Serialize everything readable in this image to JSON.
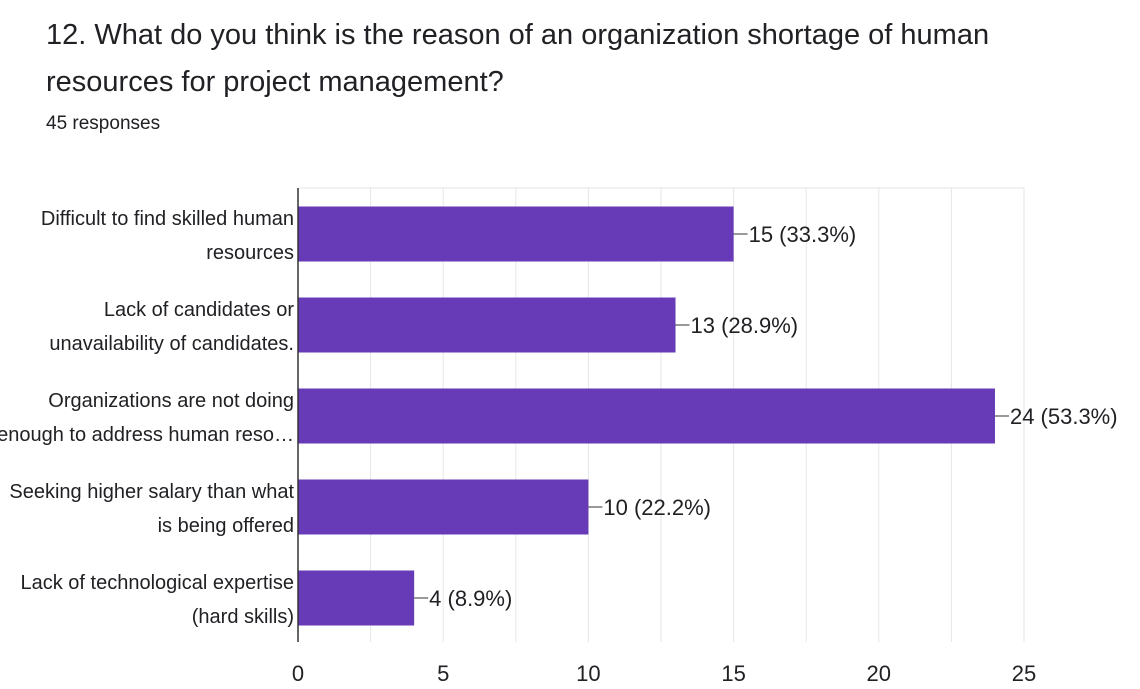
{
  "question": {
    "title": "12. What do you think is the reason of an organization shortage of human resources for project management?",
    "responses_label": "45 responses"
  },
  "colors": {
    "bar": "#673ab7",
    "grid": "#e6e6e6",
    "axis": "#333333",
    "text": "#202124"
  },
  "chart_data": {
    "type": "bar",
    "orientation": "horizontal",
    "title": "12. What do you think is the reason of an organization shortage of human resources for project management?",
    "categories": [
      [
        "Difficult to find skilled human",
        "resources"
      ],
      [
        "Lack of candidates or",
        "unavailability of candidates."
      ],
      [
        "Organizations are not doing",
        "enough to address human reso…"
      ],
      [
        "Seeking higher salary than what",
        "is being offered"
      ],
      [
        "Lack of technological expertise",
        "(hard skills)"
      ]
    ],
    "values": [
      15,
      13,
      24,
      10,
      4
    ],
    "value_labels": [
      "15 (33.3%)",
      "13 (28.9%)",
      "24 (53.3%)",
      "10 (22.2%)",
      "4 (8.9%)"
    ],
    "xlim": [
      0,
      25
    ],
    "xticks": [
      0,
      5,
      10,
      15,
      20,
      25
    ],
    "grid": true,
    "legend": "none"
  }
}
